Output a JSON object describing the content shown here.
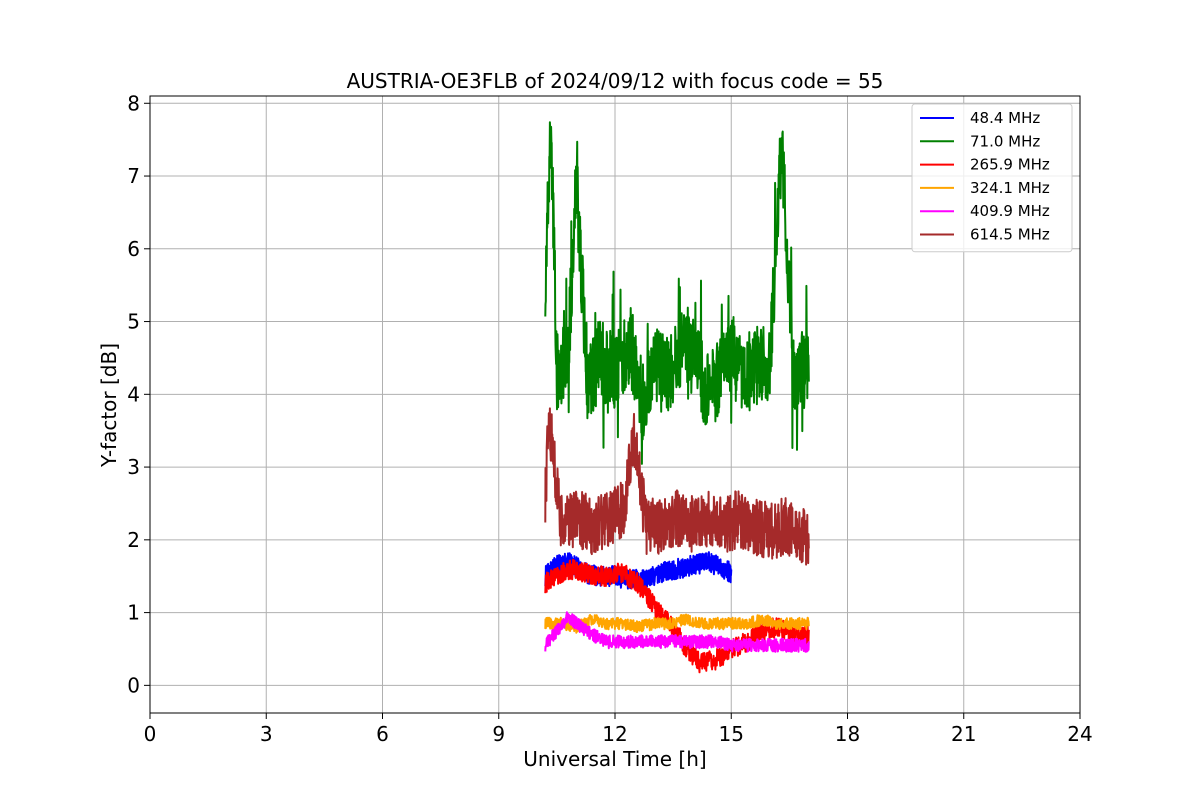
{
  "chart_data": {
    "type": "line",
    "title": "AUSTRIA-OE3FLB of 2024/09/12 with focus code = 55",
    "xlabel": "Universal Time [h]",
    "ylabel": "Y-factor [dB]",
    "xlim": [
      0,
      24
    ],
    "ylim": [
      -0.38,
      8.1
    ],
    "xticks": [
      0,
      3,
      6,
      9,
      12,
      15,
      18,
      21,
      24
    ],
    "yticks": [
      0,
      1,
      2,
      3,
      4,
      5,
      6,
      7,
      8
    ],
    "grid": true,
    "legend_position": "top-right",
    "series": [
      {
        "name": " 48.4 MHz",
        "color": "#0000ff",
        "x": [
          10.2,
          10.5,
          10.8,
          11.2,
          11.6,
          12.0,
          12.4,
          12.8,
          13.2,
          13.6,
          14.0,
          14.4,
          14.8,
          15.0
        ],
        "values": [
          1.5,
          1.65,
          1.7,
          1.55,
          1.5,
          1.5,
          1.45,
          1.45,
          1.55,
          1.6,
          1.65,
          1.7,
          1.6,
          1.55
        ]
      },
      {
        "name": " 71.0 MHz",
        "color": "#008000",
        "x": [
          10.2,
          10.35,
          10.5,
          10.8,
          11.0,
          11.3,
          11.6,
          12.0,
          12.4,
          12.7,
          13.0,
          13.4,
          13.8,
          14.0,
          14.4,
          14.8,
          15.0,
          15.3,
          15.6,
          16.0,
          16.3,
          16.6,
          17.0
        ],
        "values": [
          5.6,
          7.7,
          4.3,
          4.6,
          7.0,
          4.1,
          4.5,
          4.3,
          4.7,
          3.9,
          4.4,
          4.2,
          4.8,
          4.5,
          4.0,
          4.3,
          4.6,
          4.2,
          4.4,
          4.4,
          7.5,
          4.2,
          4.4
        ]
      },
      {
        "name": "265.9 MHz",
        "color": "#ff0000",
        "x": [
          10.2,
          10.6,
          11.0,
          11.4,
          11.8,
          12.2,
          12.6,
          13.0,
          13.4,
          13.8,
          14.2,
          14.6,
          15.0,
          15.4,
          15.8,
          16.2,
          16.6,
          17.0
        ],
        "values": [
          1.4,
          1.55,
          1.6,
          1.5,
          1.5,
          1.55,
          1.4,
          1.1,
          0.85,
          0.55,
          0.3,
          0.35,
          0.5,
          0.6,
          0.75,
          0.8,
          0.7,
          0.7
        ]
      },
      {
        "name": "324.1 MHz",
        "color": "#ffa500",
        "x": [
          10.2,
          10.6,
          11.0,
          11.4,
          11.8,
          12.2,
          12.6,
          13.0,
          13.4,
          13.8,
          14.2,
          14.6,
          15.0,
          15.4,
          15.8,
          16.2,
          16.6,
          17.0
        ],
        "values": [
          0.85,
          0.85,
          0.8,
          0.9,
          0.85,
          0.85,
          0.8,
          0.85,
          0.85,
          0.9,
          0.85,
          0.85,
          0.85,
          0.85,
          0.9,
          0.85,
          0.85,
          0.85
        ]
      },
      {
        "name": "409.9 MHz",
        "color": "#ff00ff",
        "x": [
          10.2,
          10.5,
          10.8,
          11.0,
          11.4,
          11.8,
          12.2,
          12.6,
          13.0,
          13.4,
          13.8,
          14.2,
          14.6,
          15.0,
          15.4,
          15.8,
          16.2,
          16.6,
          17.0
        ],
        "values": [
          0.55,
          0.75,
          0.95,
          0.85,
          0.7,
          0.6,
          0.6,
          0.6,
          0.6,
          0.6,
          0.6,
          0.6,
          0.6,
          0.55,
          0.55,
          0.55,
          0.55,
          0.55,
          0.55
        ]
      },
      {
        "name": "614.5 MHz",
        "color": "#a52a2a",
        "x": [
          10.2,
          10.3,
          10.6,
          11.0,
          11.4,
          11.8,
          12.2,
          12.5,
          12.8,
          13.2,
          13.6,
          14.0,
          14.4,
          14.8,
          15.2,
          15.6,
          16.0,
          16.4,
          16.8,
          17.0
        ],
        "values": [
          2.6,
          3.7,
          2.2,
          2.3,
          2.2,
          2.3,
          2.4,
          3.4,
          2.2,
          2.2,
          2.3,
          2.2,
          2.3,
          2.2,
          2.3,
          2.2,
          2.1,
          2.2,
          2.1,
          2.0
        ]
      }
    ]
  }
}
